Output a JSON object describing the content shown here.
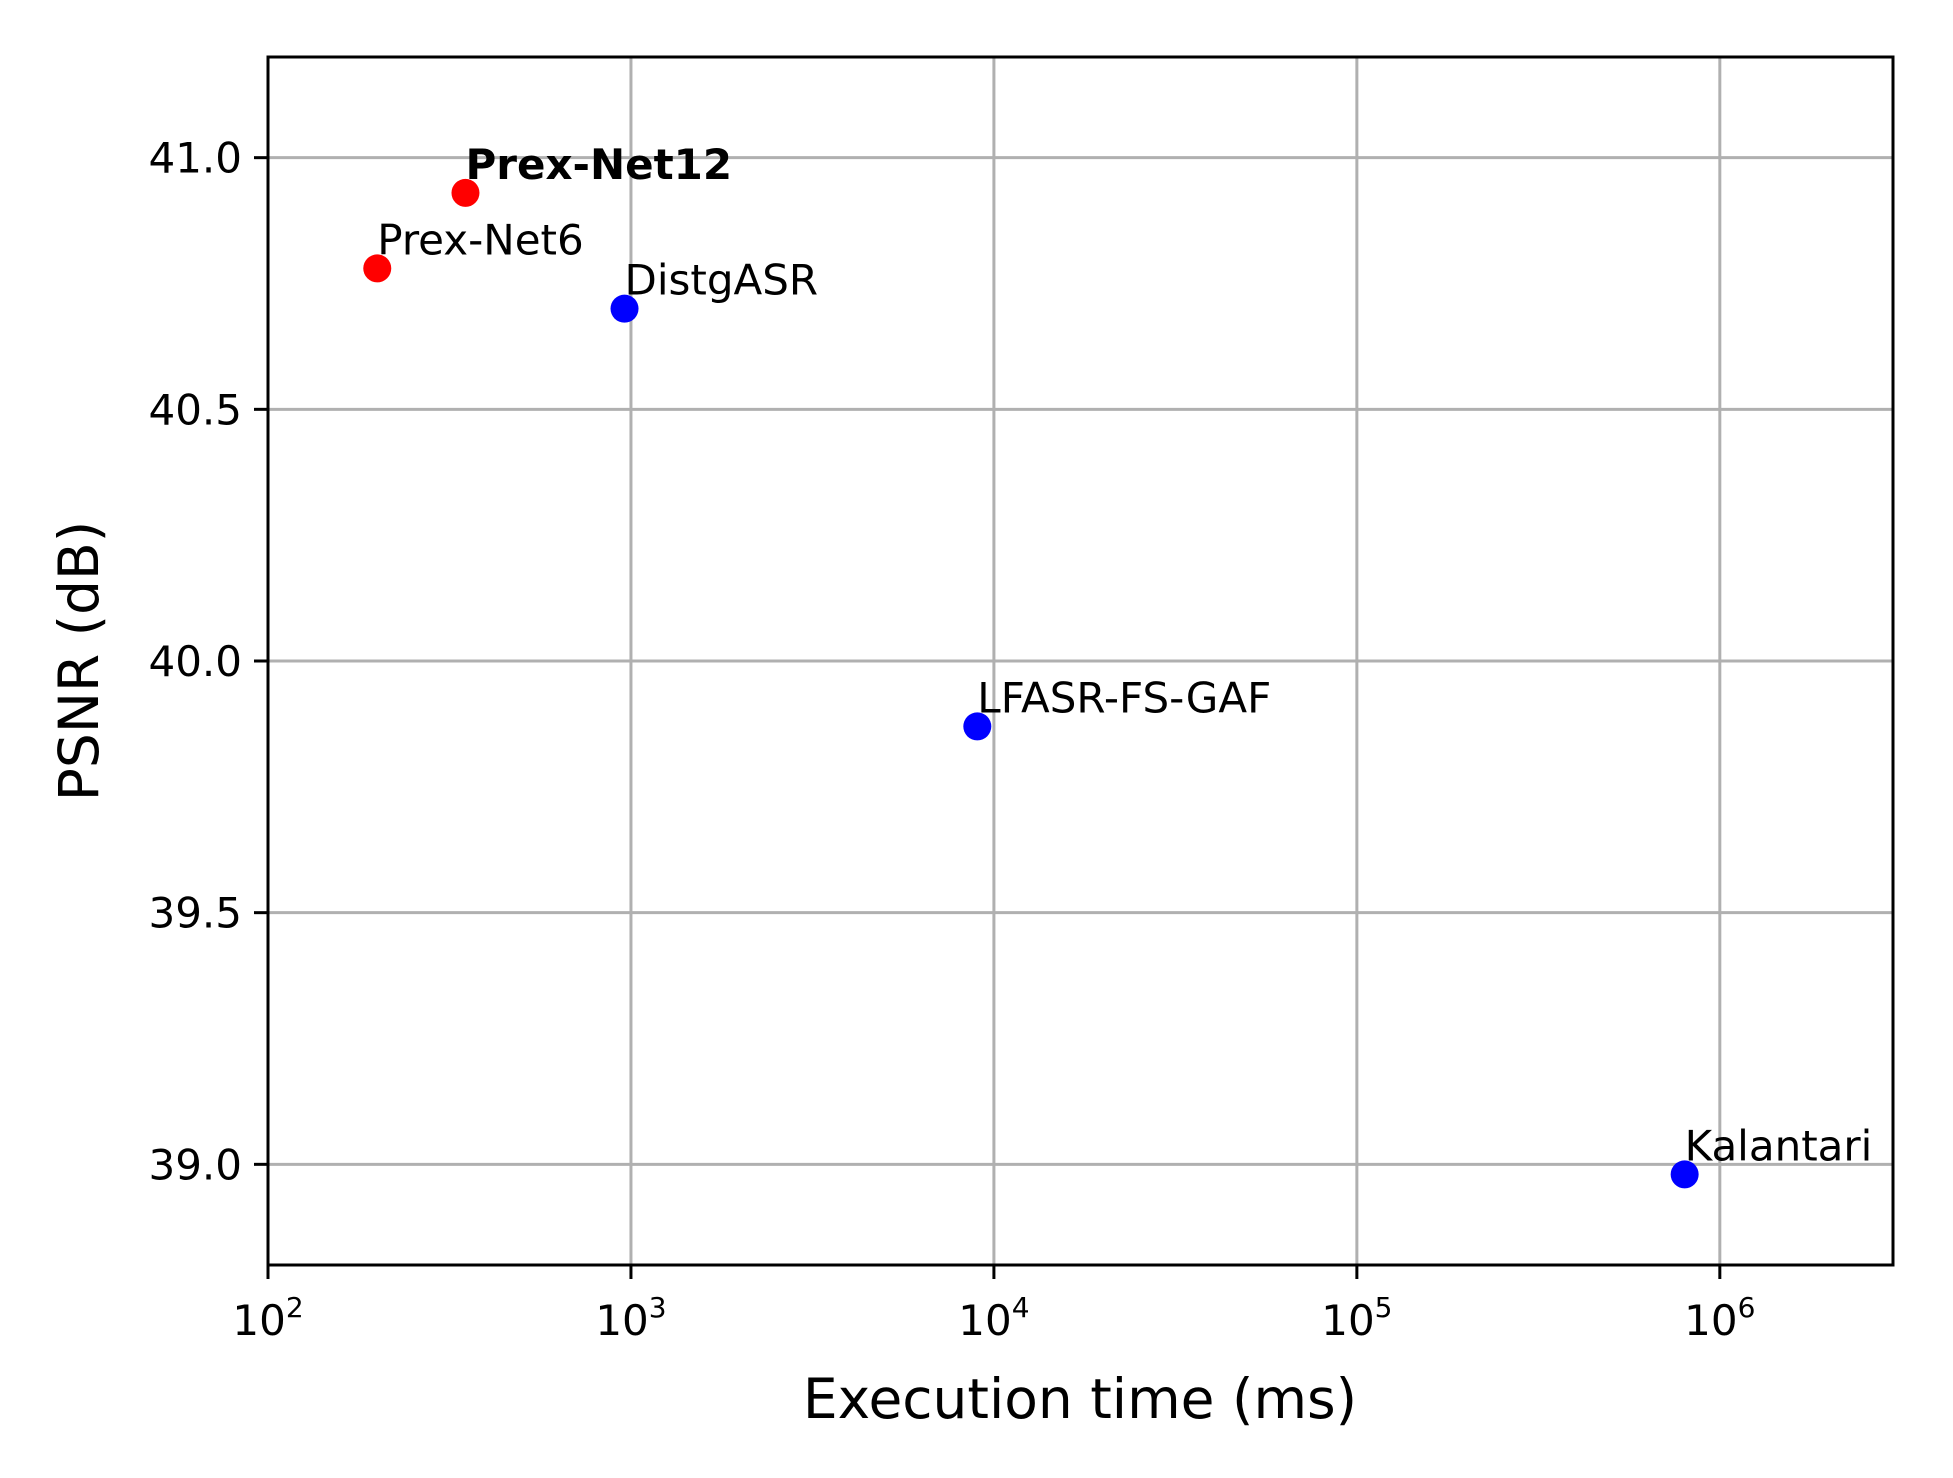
{
  "chart_data": {
    "type": "scatter",
    "title": "",
    "xlabel": "Execution time (ms)",
    "ylabel": "PSNR (dB)",
    "xscale": "log",
    "xlim": [
      100,
      3000000
    ],
    "ylim": [
      38.8,
      41.2
    ],
    "grid": true,
    "x_ticks": [
      {
        "value": 100,
        "base": "10",
        "exp": "2"
      },
      {
        "value": 1000,
        "base": "10",
        "exp": "3"
      },
      {
        "value": 10000,
        "base": "10",
        "exp": "4"
      },
      {
        "value": 100000,
        "base": "10",
        "exp": "5"
      },
      {
        "value": 1000000,
        "base": "10",
        "exp": "6"
      }
    ],
    "y_ticks": [
      {
        "value": 39.0,
        "label": "39.0"
      },
      {
        "value": 39.5,
        "label": "39.5"
      },
      {
        "value": 40.0,
        "label": "40.0"
      },
      {
        "value": 40.5,
        "label": "40.5"
      },
      {
        "value": 41.0,
        "label": "41.0"
      }
    ],
    "points": [
      {
        "name": "Prex-Net12",
        "x": 350,
        "y": 40.93,
        "color": "#ff0000",
        "bold": true
      },
      {
        "name": "Prex-Net6",
        "x": 200,
        "y": 40.78,
        "color": "#ff0000",
        "bold": false
      },
      {
        "name": "DistgASR",
        "x": 960,
        "y": 40.7,
        "color": "#0000ff",
        "bold": false
      },
      {
        "name": "LFASR-FS-GAF",
        "x": 9000,
        "y": 39.87,
        "color": "#0000ff",
        "bold": false
      },
      {
        "name": "Kalantari",
        "x": 800000,
        "y": 38.98,
        "color": "#0000ff",
        "bold": false
      }
    ]
  }
}
